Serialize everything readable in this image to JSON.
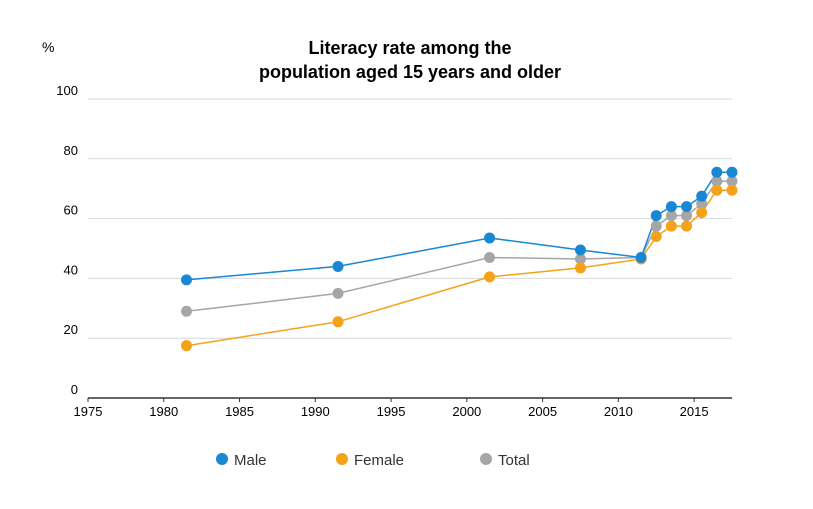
{
  "chart_data": {
    "type": "line",
    "title_line1": "Literacy rate among the",
    "title_line2": "population aged 15 years and older",
    "y_unit": "%",
    "xlim": [
      1975,
      2017.5
    ],
    "ylim": [
      0,
      100
    ],
    "x_ticks": [
      1975,
      1980,
      1985,
      1990,
      1995,
      2000,
      2005,
      2010,
      2015
    ],
    "y_ticks": [
      0,
      20,
      40,
      60,
      80,
      100
    ],
    "grid": true,
    "legend_position": "bottom",
    "series": [
      {
        "name": "Male",
        "color": "#1a87d4",
        "points": [
          [
            1981.5,
            39.5
          ],
          [
            1991.5,
            44
          ],
          [
            2001.5,
            53.5
          ],
          [
            2007.5,
            49.5
          ],
          [
            2011.5,
            47
          ],
          [
            2012.5,
            61
          ],
          [
            2013.5,
            64
          ],
          [
            2014.5,
            64
          ],
          [
            2015.5,
            67.5
          ],
          [
            2016.5,
            75.5
          ],
          [
            2017.5,
            75.5
          ]
        ]
      },
      {
        "name": "Female",
        "color": "#f5a21b",
        "points": [
          [
            1981.5,
            17.5
          ],
          [
            1991.5,
            25.5
          ],
          [
            2001.5,
            40.5
          ],
          [
            2007.5,
            43.5
          ],
          [
            2011.5,
            46.5
          ],
          [
            2012.5,
            54
          ],
          [
            2013.5,
            57.5
          ],
          [
            2014.5,
            57.5
          ],
          [
            2015.5,
            62
          ],
          [
            2016.5,
            69.5
          ],
          [
            2017.5,
            69.5
          ]
        ]
      },
      {
        "name": "Total",
        "color": "#a6a6a6",
        "points": [
          [
            1981.5,
            29
          ],
          [
            1991.5,
            35
          ],
          [
            2001.5,
            47
          ],
          [
            2007.5,
            46.5
          ],
          [
            2011.5,
            47
          ],
          [
            2012.5,
            57.5
          ],
          [
            2013.5,
            61
          ],
          [
            2014.5,
            61
          ],
          [
            2015.5,
            65
          ],
          [
            2016.5,
            72.5
          ],
          [
            2017.5,
            72.5
          ]
        ]
      }
    ]
  }
}
